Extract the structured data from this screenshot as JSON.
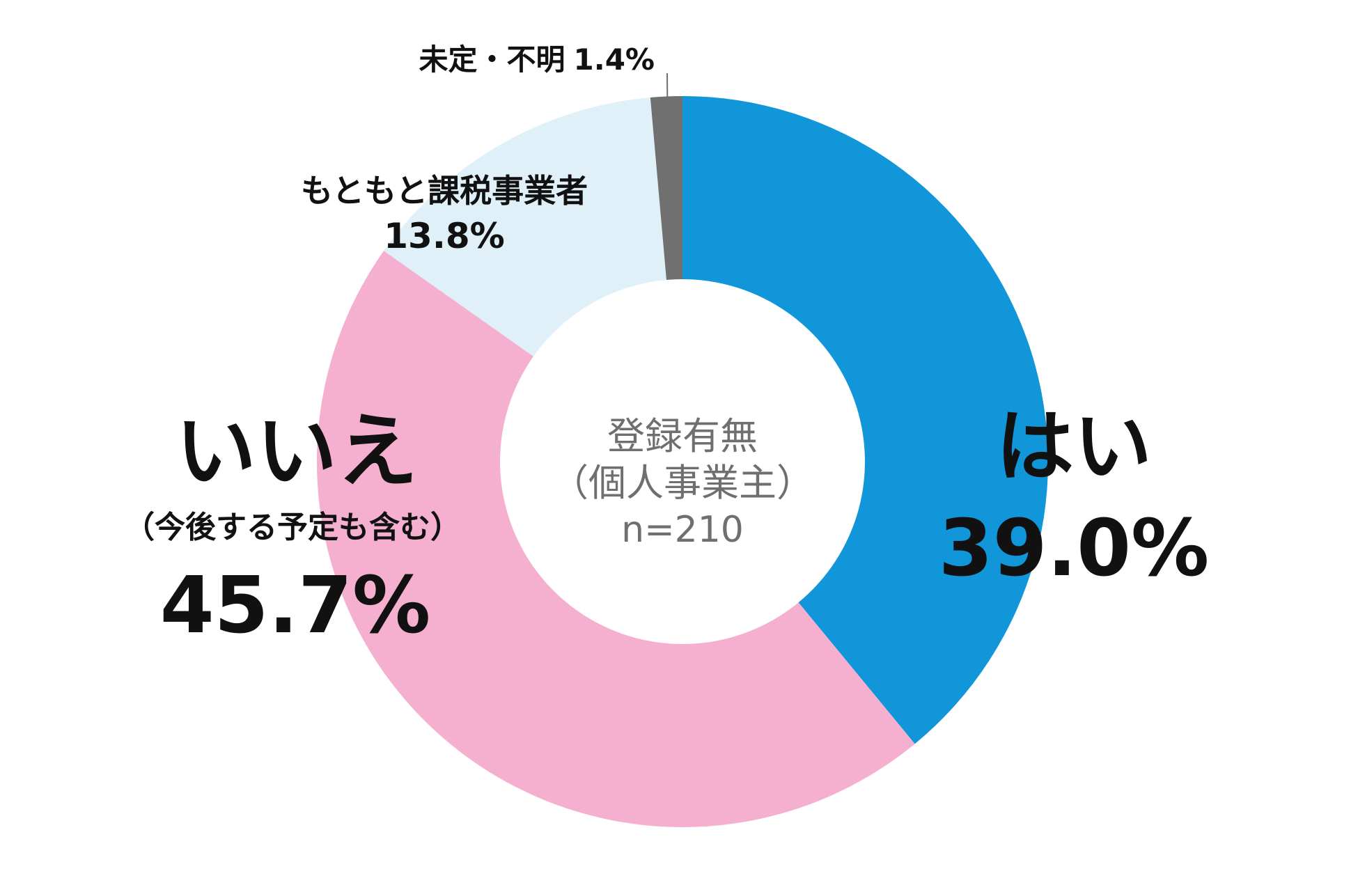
{
  "chart_data": {
    "type": "pie",
    "style": "donut",
    "center_label": {
      "line1": "登録有無",
      "line2": "（個人事業主）",
      "line3": "n=210"
    },
    "slices": [
      {
        "name": "はい",
        "value": 39.0,
        "value_label": "39.0%",
        "color": "#1196da"
      },
      {
        "name": "いいえ",
        "note": "（今後する予定も含む）",
        "value": 45.7,
        "value_label": "45.7%",
        "color": "#f5b0d0"
      },
      {
        "name": "もともと課税事業者",
        "value": 13.8,
        "value_label": "13.8%",
        "color": "#e0f0f8"
      },
      {
        "name": "未定・不明",
        "value": 1.4,
        "value_label": "1.4%",
        "color": "#707070"
      }
    ]
  }
}
